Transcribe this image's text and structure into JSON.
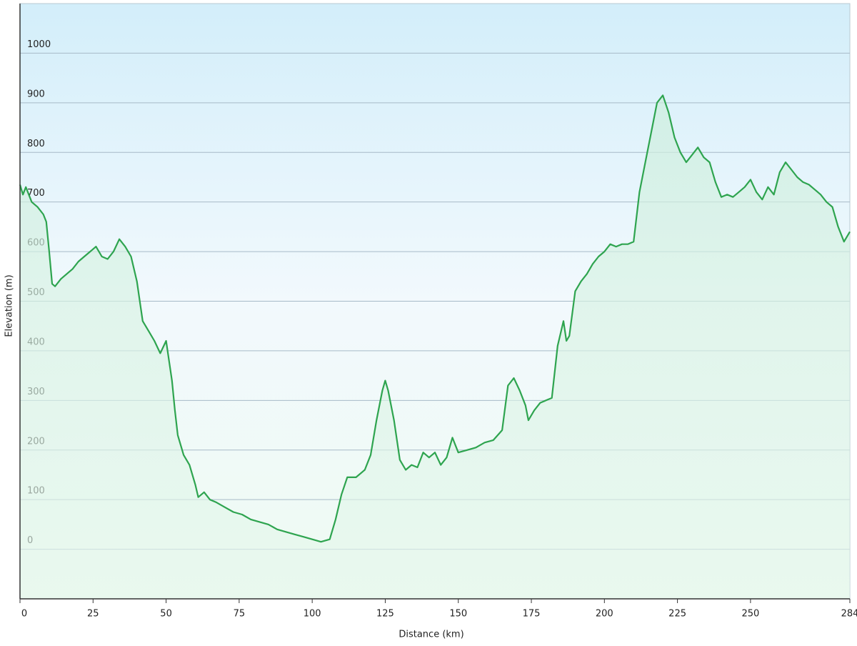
{
  "chart_data": {
    "type": "area",
    "xlabel": "Distance  (km)",
    "ylabel": "Elevation (m)",
    "x": [
      0,
      1,
      2,
      4,
      6,
      8,
      9,
      10,
      11,
      12,
      14,
      16,
      18,
      20,
      22,
      24,
      26,
      28,
      30,
      32,
      34,
      36,
      38,
      40,
      42,
      44,
      46,
      48,
      50,
      51,
      52,
      53,
      54,
      56,
      58,
      60,
      61,
      63,
      65,
      67,
      70,
      73,
      76,
      79,
      82,
      85,
      88,
      91,
      94,
      97,
      100,
      103,
      106,
      108,
      110,
      112,
      115,
      118,
      120,
      122,
      124,
      125,
      126,
      128,
      130,
      132,
      134,
      136,
      138,
      140,
      142,
      144,
      146,
      148,
      150,
      153,
      156,
      159,
      162,
      165,
      167,
      169,
      171,
      173,
      174,
      176,
      178,
      180,
      182,
      184,
      186,
      187,
      188,
      190,
      192,
      194,
      196,
      198,
      200,
      202,
      204,
      206,
      208,
      210,
      212,
      214,
      216,
      218,
      220,
      222,
      224,
      226,
      228,
      230,
      232,
      234,
      236,
      238,
      240,
      242,
      244,
      246,
      248,
      250,
      252,
      254,
      256,
      258,
      260,
      262,
      264,
      266,
      268,
      270,
      272,
      274,
      276,
      278,
      280,
      282,
      284
    ],
    "values": [
      735,
      715,
      730,
      700,
      690,
      675,
      660,
      600,
      535,
      530,
      545,
      555,
      565,
      580,
      590,
      600,
      610,
      590,
      585,
      600,
      625,
      610,
      590,
      540,
      460,
      440,
      420,
      395,
      420,
      380,
      340,
      280,
      230,
      190,
      170,
      130,
      105,
      115,
      100,
      95,
      85,
      75,
      70,
      60,
      55,
      50,
      40,
      35,
      30,
      25,
      20,
      15,
      20,
      60,
      110,
      145,
      145,
      160,
      190,
      260,
      320,
      340,
      320,
      260,
      180,
      160,
      170,
      165,
      195,
      185,
      195,
      170,
      185,
      225,
      195,
      200,
      205,
      215,
      220,
      240,
      330,
      345,
      320,
      290,
      260,
      280,
      295,
      300,
      305,
      410,
      460,
      420,
      430,
      520,
      540,
      555,
      575,
      590,
      600,
      615,
      610,
      615,
      615,
      620,
      720,
      780,
      840,
      900,
      915,
      880,
      830,
      800,
      780,
      795,
      810,
      790,
      780,
      740,
      710,
      715,
      710,
      720,
      730,
      745,
      720,
      705,
      730,
      715,
      760,
      780,
      765,
      750,
      740,
      735,
      725,
      715,
      700,
      690,
      650,
      620,
      640
    ],
    "color": "#2ea44f",
    "xlim": [
      0,
      284
    ],
    "xticks": [
      0,
      25,
      50,
      75,
      100,
      125,
      150,
      175,
      200,
      225,
      250,
      284
    ],
    "ylim": [
      -100,
      1100
    ],
    "yticks": [
      0,
      100,
      200,
      300,
      400,
      500,
      600,
      700,
      800,
      900,
      1000
    ],
    "grid": true
  }
}
